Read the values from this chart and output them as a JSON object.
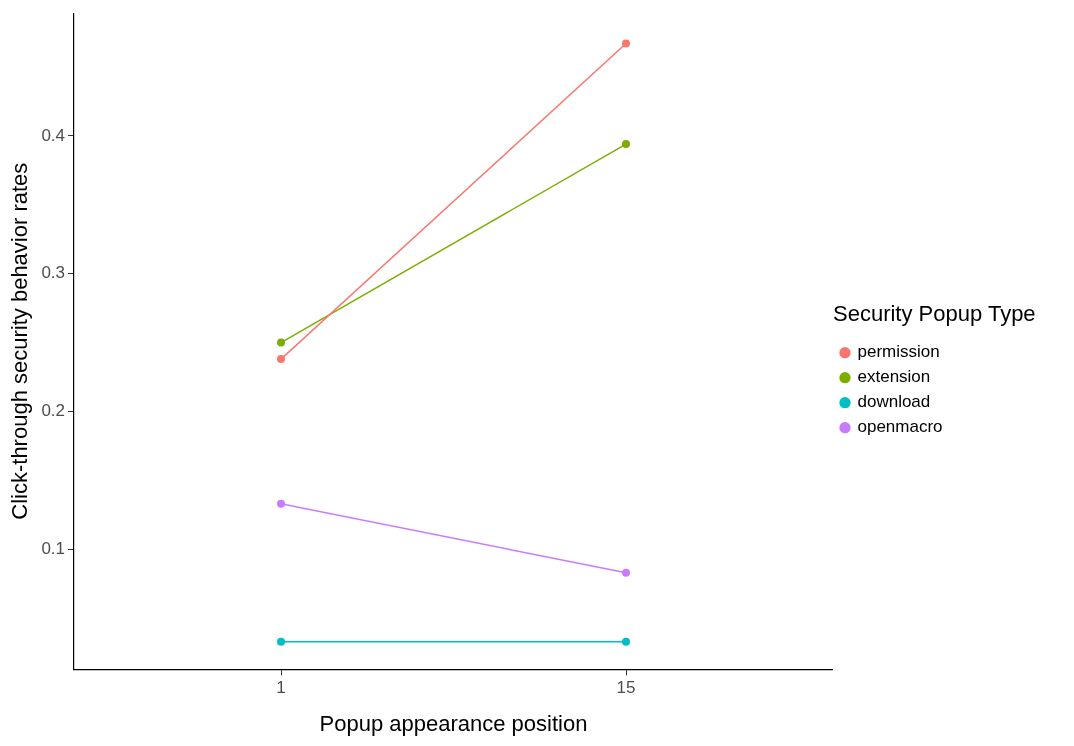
{
  "chart_data": {
    "type": "line",
    "xlabel": "Popup appearance position",
    "ylabel": "Click-through security behavior rates",
    "legend_title": "Security Popup Type",
    "legend": "right",
    "grid": false,
    "marker": "circle",
    "line_style": "solid",
    "categories": [
      "1",
      "15"
    ],
    "ylim": [
      0.013,
      0.489
    ],
    "yticks": [
      0.1,
      0.2,
      0.3,
      0.4
    ],
    "series": [
      {
        "name": "permission",
        "color": "#f8766d",
        "values": [
          0.238,
          0.467
        ]
      },
      {
        "name": "extension",
        "color": "#7cae00",
        "values": [
          0.25,
          0.394
        ]
      },
      {
        "name": "download",
        "color": "#00bfc4",
        "values": [
          0.033,
          0.033
        ]
      },
      {
        "name": "openmacro",
        "color": "#c77cff",
        "values": [
          0.133,
          0.083
        ]
      }
    ]
  }
}
